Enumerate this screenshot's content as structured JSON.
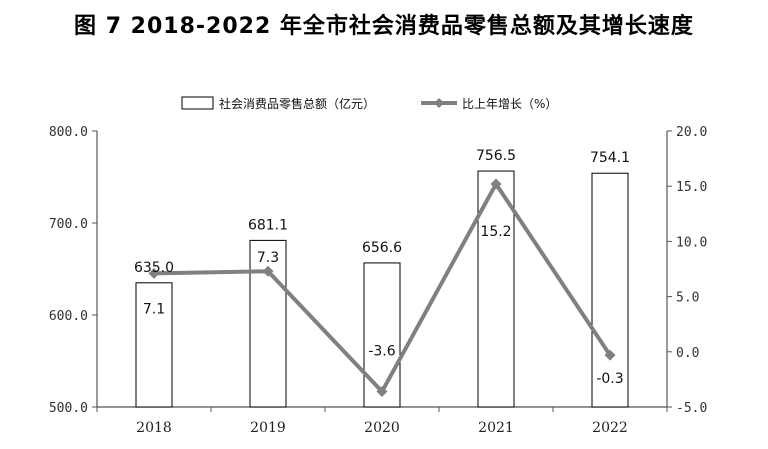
{
  "title": "图 7   2018-2022 年全市社会消费品零售总额及其增长速度",
  "chart_data": {
    "type": "bar",
    "categories": [
      "2018",
      "2019",
      "2020",
      "2021",
      "2022"
    ],
    "series": [
      {
        "name": "社会消费品零售总额（亿元）",
        "type": "bar",
        "axis": "left",
        "values": [
          635.0,
          681.1,
          656.6,
          756.5,
          754.1
        ],
        "labels": [
          "635.0",
          "681.1",
          "656.6",
          "756.5",
          "754.1"
        ],
        "color": "#ffffff"
      },
      {
        "name": "比上年增长（%）",
        "type": "line",
        "axis": "right",
        "values": [
          7.1,
          7.3,
          -3.6,
          15.2,
          -0.3
        ],
        "labels": [
          "7.1",
          "7.3",
          "-3.6",
          "15.2",
          "-0.3"
        ],
        "color": "#808080"
      }
    ],
    "y_left": {
      "lim": [
        500,
        800
      ],
      "ticks": [
        "500.0",
        "600.0",
        "700.0",
        "800.0"
      ]
    },
    "y_right": {
      "lim": [
        -5,
        20
      ],
      "ticks": [
        "-5.0",
        "0.0",
        "5.0",
        "10.0",
        "15.0",
        "20.0"
      ]
    },
    "legend": "top-center",
    "grid": false
  }
}
